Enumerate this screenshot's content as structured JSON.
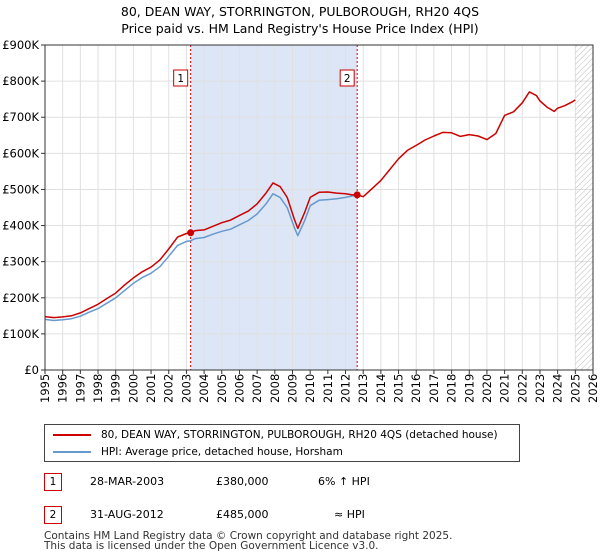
{
  "title_line1": "80, DEAN WAY, STORRINGTON, PULBOROUGH, RH20 4QS",
  "title_line2": "Price paid vs. HM Land Registry's House Price Index (HPI)",
  "chart_data": {
    "type": "line",
    "xlim": [
      1995,
      2026
    ],
    "ylim": [
      0,
      900000
    ],
    "x_ticks": [
      1995,
      1996,
      1997,
      1998,
      1999,
      2000,
      2001,
      2002,
      2003,
      2004,
      2005,
      2006,
      2007,
      2008,
      2009,
      2010,
      2011,
      2012,
      2013,
      2014,
      2015,
      2016,
      2017,
      2018,
      2019,
      2020,
      2021,
      2022,
      2023,
      2024,
      2025,
      2026
    ],
    "y_ticks": [
      {
        "value": 0,
        "label": "£0"
      },
      {
        "value": 100000,
        "label": "£100K"
      },
      {
        "value": 200000,
        "label": "£200K"
      },
      {
        "value": 300000,
        "label": "£300K"
      },
      {
        "value": 400000,
        "label": "£400K"
      },
      {
        "value": 500000,
        "label": "£500K"
      },
      {
        "value": 600000,
        "label": "£600K"
      },
      {
        "value": 700000,
        "label": "£700K"
      },
      {
        "value": 800000,
        "label": "£800K"
      },
      {
        "value": 900000,
        "label": "£900K"
      }
    ],
    "shaded_period": [
      2003.24,
      2012.66
    ],
    "future_hatch_from": 2025.0,
    "series": [
      {
        "name": "80, DEAN WAY, STORRINGTON, PULBOROUGH, RH20 4QS (detached house)",
        "color": "#cc0000",
        "x": [
          1995,
          1995.5,
          1996,
          1996.5,
          1997,
          1997.5,
          1998,
          1998.5,
          1999,
          1999.5,
          2000,
          2000.5,
          2001,
          2001.5,
          2002,
          2002.5,
          2003,
          2003.24,
          2003.5,
          2004,
          2004.5,
          2005,
          2005.5,
          2006,
          2006.5,
          2007,
          2007.5,
          2007.9,
          2008.3,
          2008.7,
          2009.1,
          2009.3,
          2009.7,
          2010,
          2010.5,
          2011,
          2011.5,
          2012,
          2012.4,
          2012.66,
          2013,
          2013.5,
          2014,
          2014.5,
          2015,
          2015.5,
          2016,
          2016.5,
          2017,
          2017.5,
          2018,
          2018.5,
          2019,
          2019.5,
          2020,
          2020.5,
          2021,
          2021.5,
          2022,
          2022.4,
          2022.8,
          2023,
          2023.4,
          2023.8,
          2024,
          2024.4,
          2024.8,
          2025.0
        ],
        "y": [
          148000,
          145000,
          147000,
          150000,
          158000,
          170000,
          182000,
          198000,
          213000,
          235000,
          255000,
          272000,
          285000,
          305000,
          335000,
          368000,
          378000,
          380000,
          386000,
          388000,
          398000,
          408000,
          415000,
          428000,
          440000,
          460000,
          490000,
          518000,
          508000,
          478000,
          418000,
          392000,
          438000,
          478000,
          492000,
          493000,
          490000,
          488000,
          485000,
          485000,
          480000,
          502000,
          525000,
          555000,
          585000,
          608000,
          622000,
          637000,
          648000,
          658000,
          657000,
          647000,
          652000,
          648000,
          638000,
          655000,
          705000,
          715000,
          740000,
          770000,
          760000,
          745000,
          728000,
          716000,
          725000,
          732000,
          742000,
          748000
        ]
      },
      {
        "name": "HPI: Average price, detached house, Horsham",
        "color": "#6699cc",
        "x": [
          1995,
          1995.5,
          1996,
          1996.5,
          1997,
          1997.5,
          1998,
          1998.5,
          1999,
          1999.5,
          2000,
          2000.5,
          2001,
          2001.5,
          2002,
          2002.5,
          2003,
          2003.24,
          2003.5,
          2004,
          2004.5,
          2005,
          2005.5,
          2006,
          2006.5,
          2007,
          2007.5,
          2007.9,
          2008.3,
          2008.7,
          2009.1,
          2009.3,
          2009.7,
          2010,
          2010.5,
          2011,
          2011.5,
          2012,
          2012.4,
          2012.66
        ],
        "y": [
          140000,
          137000,
          139000,
          142000,
          149000,
          160000,
          170000,
          185000,
          200000,
          220000,
          240000,
          256000,
          268000,
          286000,
          315000,
          345000,
          356000,
          358000,
          364000,
          367000,
          376000,
          384000,
          390000,
          402000,
          414000,
          432000,
          460000,
          488000,
          478000,
          450000,
          395000,
          372000,
          415000,
          455000,
          470000,
          472000,
          474000,
          478000,
          482000,
          485000
        ]
      }
    ],
    "sale_markers": [
      {
        "num": "1",
        "x": 2003.24,
        "y": 380000
      },
      {
        "num": "2",
        "x": 2012.66,
        "y": 485000
      }
    ]
  },
  "legend": {
    "property_label": "80, DEAN WAY, STORRINGTON, PULBOROUGH, RH20 4QS (detached house)",
    "hpi_label": "HPI: Average price, detached house, Horsham",
    "property_color": "#cc0000",
    "hpi_color": "#6699cc"
  },
  "transactions": [
    {
      "num": "1",
      "date": "28-MAR-2003",
      "price": "£380,000",
      "hpi": "6% ↑ HPI"
    },
    {
      "num": "2",
      "date": "31-AUG-2012",
      "price": "£485,000",
      "hpi": "≈ HPI"
    }
  ],
  "footer": {
    "line1": "Contains HM Land Registry data © Crown copyright and database right 2025.",
    "line2": "This data is licensed under the Open Government Licence v3.0."
  }
}
